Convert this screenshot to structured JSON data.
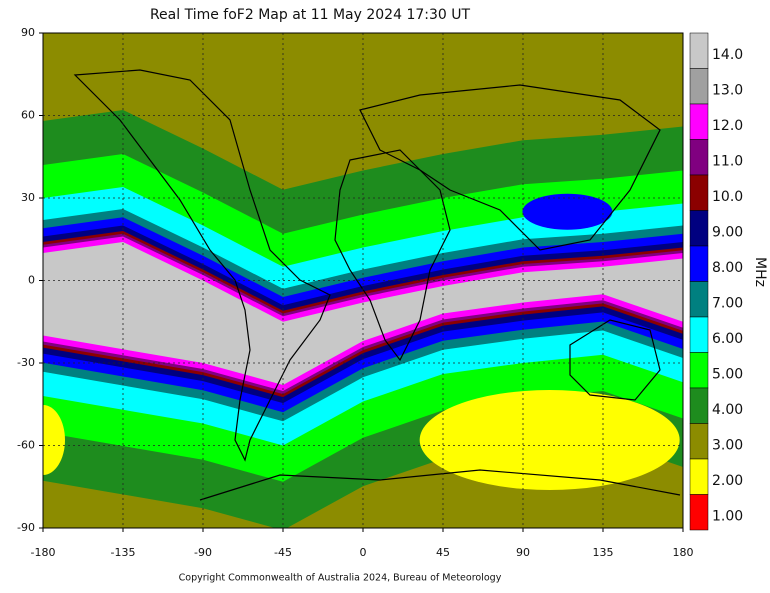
{
  "map": {
    "title": "Real Time foF2 Map at 11 May 2024 17:30 UT",
    "xlim": [
      -180,
      180
    ],
    "ylim": [
      -90,
      90
    ],
    "xticks": [
      -180,
      -135,
      -90,
      -45,
      0,
      45,
      90,
      135,
      180
    ],
    "yticks": [
      90,
      60,
      30,
      0,
      -30,
      -60,
      -90
    ],
    "grid": true,
    "colorbar": {
      "label": "MHz",
      "levels": [
        {
          "value": 14,
          "label": "14.0",
          "color": "#c8c8c8"
        },
        {
          "value": 13,
          "label": "13.0",
          "color": "#a0a0a0"
        },
        {
          "value": 12,
          "label": "12.0",
          "color": "#ff00ff"
        },
        {
          "value": 11,
          "label": "11.0",
          "color": "#800080"
        },
        {
          "value": 10,
          "label": "10.0",
          "color": "#8b0000"
        },
        {
          "value": 9,
          "label": "9.00",
          "color": "#000080"
        },
        {
          "value": 8,
          "label": "8.00",
          "color": "#0000ff"
        },
        {
          "value": 7,
          "label": "7.00",
          "color": "#008080"
        },
        {
          "value": 6,
          "label": "6.00",
          "color": "#00ffff"
        },
        {
          "value": 5,
          "label": "5.00",
          "color": "#00ff00"
        },
        {
          "value": 4,
          "label": "4.00",
          "color": "#1e8c1e"
        },
        {
          "value": 3,
          "label": "3.00",
          "color": "#8c8c00"
        },
        {
          "value": 2,
          "label": "2.00",
          "color": "#ffff00"
        },
        {
          "value": 1,
          "label": "1.00",
          "color": "#ff0000"
        }
      ]
    },
    "copyright": "Copyright Commonwealth of Australia 2024, Bureau of Meteorology"
  }
}
